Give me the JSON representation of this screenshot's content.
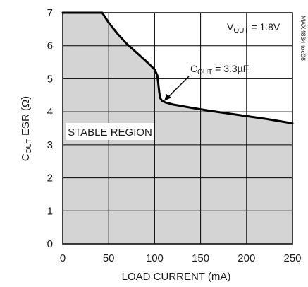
{
  "chart_data": {
    "type": "area",
    "xlabel": "LOAD CURRENT (mA)",
    "ylabel": {
      "main": "C",
      "sub": "OUT",
      "rest": " ESR (Ω)"
    },
    "xlim": [
      0,
      250
    ],
    "ylim": [
      0,
      7
    ],
    "xticks": [
      0,
      50,
      100,
      150,
      200,
      250
    ],
    "yticks": [
      0,
      1,
      2,
      3,
      4,
      5,
      6,
      7
    ],
    "grid": true,
    "figure_id": "MAX4834 toc06",
    "boundary": {
      "x": [
        0,
        43,
        50,
        60,
        70,
        80,
        90,
        100,
        103,
        104,
        105,
        106,
        108,
        112,
        120,
        140,
        160,
        180,
        200,
        220,
        250
      ],
      "y": [
        7.0,
        7.0,
        6.7,
        6.35,
        6.05,
        5.8,
        5.55,
        5.28,
        5.1,
        4.85,
        4.6,
        4.42,
        4.33,
        4.28,
        4.22,
        4.12,
        4.03,
        3.95,
        3.87,
        3.79,
        3.65
      ]
    },
    "region_label": "STABLE REGION",
    "region_fill": "#d4d4d4",
    "line_color": "#000000",
    "annotations": {
      "vout": {
        "main": "V",
        "sub": "OUT",
        "rest": " = 1.8V"
      },
      "cout": {
        "main": "C",
        "sub": "OUT",
        "rest": " = 3.3µF"
      }
    }
  }
}
